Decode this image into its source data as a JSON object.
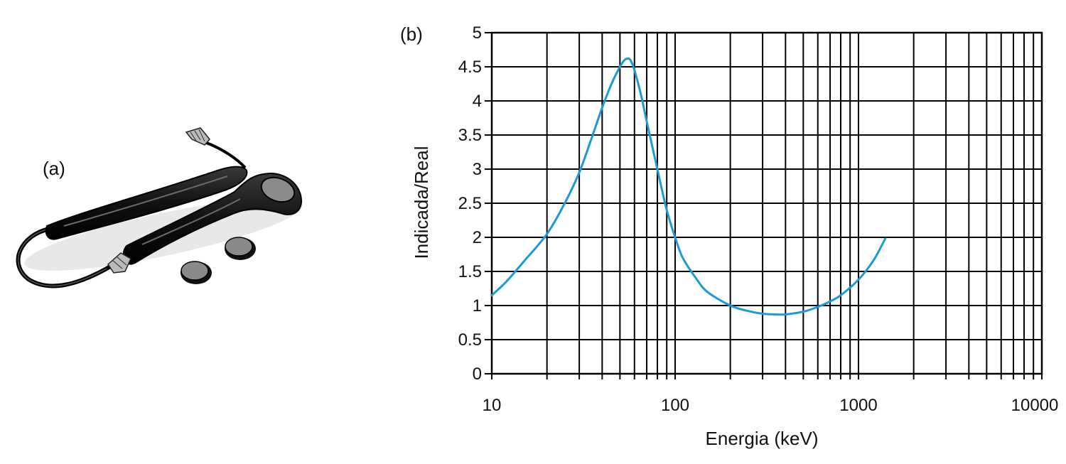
{
  "panels": {
    "a_label": "(a)",
    "b_label": "(b)"
  },
  "device_illustration": {
    "parts": [
      "cable",
      "reader-handle",
      "probe-body",
      "disc-dosimeter",
      "disc-dosimeter"
    ]
  },
  "chart_data": {
    "type": "line",
    "x_scale": "log",
    "xlim": [
      10,
      10000
    ],
    "ylim": [
      0,
      5
    ],
    "grid": true,
    "xlabel": "Energia (keV)",
    "ylabel": "Indicada/Real",
    "x_ticks": [
      "10",
      "100",
      "1000",
      "10000"
    ],
    "y_ticks": [
      "0",
      "0.5",
      "1",
      "1.5",
      "2",
      "2.5",
      "3",
      "3.5",
      "4",
      "4.5",
      "5"
    ],
    "series": [
      {
        "color": "#1a9bd7",
        "x": [
          10,
          12,
          15,
          20,
          25,
          30,
          35,
          40,
          45,
          50,
          53,
          55,
          57,
          60,
          65,
          70,
          80,
          90,
          100,
          110,
          130,
          150,
          200,
          250,
          300,
          350,
          400,
          500,
          600,
          700,
          800,
          1000,
          1200,
          1400
        ],
        "y": [
          1.15,
          1.35,
          1.65,
          2.05,
          2.5,
          2.95,
          3.45,
          3.9,
          4.25,
          4.5,
          4.6,
          4.62,
          4.6,
          4.45,
          4.1,
          3.7,
          3.0,
          2.4,
          2.0,
          1.7,
          1.4,
          1.2,
          1.0,
          0.92,
          0.88,
          0.87,
          0.87,
          0.91,
          0.98,
          1.06,
          1.15,
          1.38,
          1.65,
          1.98
        ]
      }
    ]
  }
}
